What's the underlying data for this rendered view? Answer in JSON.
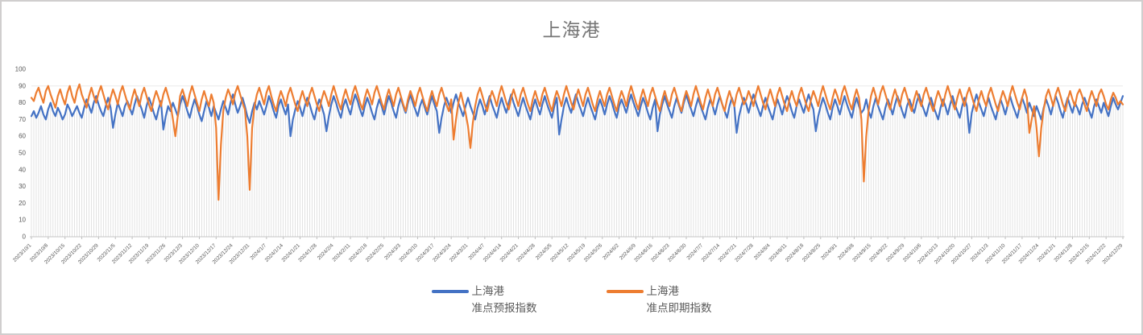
{
  "window": {
    "background": "#ffffff",
    "border_color": "#d0cece"
  },
  "chart_data": {
    "type": "line",
    "title": "上海港",
    "legend_position": "bottom",
    "grid": "vertical-drop-lines-per-point, faint horizontal line at 90",
    "ylim": [
      0,
      100
    ],
    "y_ticks": [
      0,
      10,
      20,
      30,
      40,
      50,
      60,
      70,
      80,
      90,
      100
    ],
    "tick_every": 7,
    "x_tick_labels": [
      "2023/10/1",
      "2023/10/8",
      "2023/10/15",
      "2023/10/22",
      "2023/10/29",
      "2023/11/5",
      "2023/11/12",
      "2023/11/19",
      "2023/11/26",
      "2023/12/3",
      "2023/12/10",
      "2023/12/17",
      "2023/12/24",
      "2023/12/31",
      "2024/1/7",
      "2024/1/14",
      "2024/1/21",
      "2024/1/28",
      "2024/2/4",
      "2024/2/11",
      "2024/2/18",
      "2024/2/25",
      "2024/3/3",
      "2024/3/10",
      "2024/3/17",
      "2024/3/24",
      "2024/3/31",
      "2024/4/7",
      "2024/4/14",
      "2024/4/21",
      "2024/4/28",
      "2024/5/5",
      "2024/5/12",
      "2024/5/19",
      "2024/5/26",
      "2024/6/2",
      "2024/6/9",
      "2024/6/16",
      "2024/6/23",
      "2024/6/30",
      "2024/7/7",
      "2024/7/14",
      "2024/7/21",
      "2024/7/28",
      "2024/8/4",
      "2024/8/11",
      "2024/8/18",
      "2024/8/25",
      "2024/9/1",
      "2024/9/8",
      "2024/9/15",
      "2024/9/22",
      "2024/9/29",
      "2024/10/6",
      "2024/10/13",
      "2024/10/20",
      "2024/10/27",
      "2024/11/3",
      "2024/11/10",
      "2024/11/17",
      "2024/11/24",
      "2024/12/1",
      "2024/12/8",
      "2024/12/15",
      "2024/12/22",
      "2024/12/29"
    ],
    "colors": {
      "title_text": "#767676",
      "axis_line": "#c6c6c6",
      "tick_mark": "#bfbfbf",
      "tick_text": "#595959",
      "dropline": "#dcdcdc",
      "gridline": "#e9e9e9",
      "legend_text": "#595959"
    },
    "series": [
      {
        "name": "上海港 准点预报指数",
        "legend_line1": "上海港",
        "legend_line2": "准点预报指数",
        "color": "#4472C4",
        "values": [
          72,
          75,
          71,
          74,
          78,
          73,
          70,
          76,
          80,
          75,
          72,
          77,
          74,
          70,
          73,
          79,
          76,
          72,
          75,
          78,
          74,
          71,
          77,
          82,
          78,
          74,
          80,
          84,
          79,
          75,
          72,
          78,
          83,
          77,
          65,
          73,
          80,
          76,
          72,
          78,
          81,
          77,
          73,
          79,
          84,
          80,
          76,
          71,
          78,
          83,
          79,
          74,
          70,
          76,
          81,
          64,
          72,
          78,
          75,
          80,
          76,
          72,
          79,
          84,
          80,
          75,
          71,
          77,
          82,
          78,
          73,
          69,
          75,
          81,
          77,
          72,
          78,
          74,
          70,
          76,
          81,
          77,
          73,
          80,
          85,
          79,
          74,
          78,
          83,
          78,
          72,
          68,
          75,
          80,
          76,
          81,
          77,
          73,
          78,
          84,
          80,
          75,
          71,
          78,
          82,
          77,
          73,
          79,
          60,
          70,
          76,
          81,
          77,
          72,
          78,
          83,
          79,
          74,
          70,
          77,
          82,
          78,
          73,
          63,
          72,
          79,
          84,
          80,
          75,
          71,
          78,
          82,
          77,
          73,
          80,
          85,
          81,
          76,
          72,
          78,
          83,
          79,
          74,
          70,
          77,
          82,
          78,
          73,
          79,
          84,
          80,
          75,
          71,
          78,
          83,
          78,
          74,
          80,
          85,
          80,
          76,
          72,
          78,
          82,
          77,
          73,
          79,
          84,
          79,
          75,
          62,
          71,
          78,
          83,
          79,
          74,
          80,
          85,
          80,
          76,
          72,
          78,
          83,
          78,
          74,
          70,
          77,
          82,
          78,
          73,
          79,
          84,
          79,
          75,
          71,
          78,
          83,
          78,
          74,
          80,
          85,
          80,
          76,
          72,
          78,
          83,
          78,
          74,
          70,
          77,
          82,
          77,
          73,
          79,
          84,
          79,
          75,
          71,
          78,
          83,
          61,
          70,
          78,
          83,
          78,
          74,
          80,
          85,
          80,
          76,
          72,
          78,
          83,
          78,
          74,
          70,
          77,
          82,
          78,
          73,
          79,
          84,
          80,
          75,
          71,
          78,
          82,
          78,
          74,
          80,
          85,
          80,
          76,
          72,
          78,
          83,
          79,
          74,
          70,
          77,
          82,
          63,
          73,
          79,
          84,
          79,
          75,
          71,
          78,
          83,
          78,
          74,
          80,
          85,
          80,
          76,
          72,
          78,
          83,
          78,
          74,
          70,
          77,
          82,
          78,
          73,
          79,
          84,
          79,
          75,
          71,
          78,
          83,
          78,
          62,
          72,
          78,
          83,
          79,
          74,
          80,
          85,
          80,
          76,
          72,
          78,
          83,
          78,
          74,
          70,
          77,
          82,
          78,
          73,
          79,
          84,
          80,
          75,
          71,
          78,
          82,
          78,
          74,
          80,
          85,
          80,
          76,
          63,
          72,
          78,
          83,
          79,
          74,
          70,
          77,
          82,
          78,
          73,
          79,
          84,
          79,
          75,
          71,
          78,
          83,
          78,
          74,
          76,
          82,
          75,
          71,
          78,
          83,
          78,
          74,
          70,
          77,
          82,
          78,
          73,
          79,
          84,
          80,
          75,
          71,
          78,
          82,
          78,
          74,
          80,
          85,
          80,
          76,
          72,
          78,
          83,
          78,
          74,
          70,
          77,
          82,
          78,
          73,
          79,
          84,
          79,
          75,
          71,
          78,
          83,
          78,
          62,
          74,
          80,
          85,
          80,
          76,
          72,
          78,
          83,
          78,
          74,
          70,
          77,
          82,
          78,
          73,
          79,
          84,
          79,
          75,
          71,
          78,
          83,
          79,
          74,
          80,
          76,
          72,
          78,
          74,
          70,
          77,
          82,
          78,
          73,
          79,
          84,
          80,
          75,
          71,
          78,
          83,
          78,
          74,
          80,
          77,
          73,
          79,
          83,
          79,
          75,
          71,
          78,
          82,
          78,
          74,
          80,
          76,
          72,
          78,
          83,
          79,
          76,
          80,
          84
        ]
      },
      {
        "name": "上海港 准点即期指数",
        "legend_line1": "上海港",
        "legend_line2": "准点即期指数",
        "color": "#ED7D31",
        "values": [
          83,
          81,
          86,
          89,
          84,
          80,
          87,
          90,
          85,
          81,
          77,
          84,
          88,
          83,
          79,
          86,
          90,
          84,
          80,
          87,
          91,
          85,
          81,
          77,
          84,
          89,
          84,
          80,
          86,
          90,
          85,
          80,
          76,
          83,
          88,
          84,
          79,
          86,
          90,
          85,
          80,
          76,
          83,
          88,
          83,
          78,
          85,
          89,
          84,
          79,
          75,
          82,
          87,
          83,
          78,
          85,
          89,
          84,
          79,
          70,
          60,
          72,
          84,
          88,
          83,
          78,
          85,
          90,
          85,
          80,
          75,
          82,
          87,
          82,
          78,
          85,
          80,
          65,
          22,
          55,
          75,
          83,
          88,
          84,
          79,
          86,
          90,
          85,
          80,
          76,
          60,
          28,
          65,
          78,
          85,
          89,
          84,
          79,
          86,
          90,
          84,
          79,
          75,
          82,
          87,
          83,
          78,
          85,
          89,
          84,
          79,
          75,
          82,
          87,
          82,
          78,
          85,
          89,
          84,
          79,
          75,
          82,
          87,
          83,
          78,
          85,
          90,
          85,
          80,
          76,
          83,
          88,
          83,
          79,
          86,
          90,
          85,
          80,
          76,
          83,
          88,
          84,
          79,
          86,
          90,
          85,
          80,
          76,
          83,
          88,
          83,
          78,
          85,
          89,
          84,
          79,
          75,
          82,
          87,
          83,
          78,
          85,
          89,
          84,
          79,
          75,
          82,
          87,
          82,
          78,
          85,
          89,
          84,
          79,
          75,
          82,
          58,
          70,
          80,
          86,
          80,
          74,
          66,
          53,
          68,
          78,
          85,
          89,
          84,
          79,
          75,
          82,
          87,
          83,
          78,
          85,
          90,
          85,
          80,
          76,
          83,
          88,
          83,
          78,
          85,
          89,
          84,
          79,
          75,
          82,
          87,
          82,
          78,
          85,
          89,
          84,
          79,
          75,
          82,
          87,
          83,
          78,
          85,
          90,
          85,
          80,
          76,
          83,
          88,
          83,
          78,
          85,
          89,
          84,
          79,
          75,
          82,
          87,
          82,
          78,
          85,
          89,
          84,
          79,
          75,
          82,
          87,
          83,
          78,
          85,
          90,
          85,
          80,
          76,
          83,
          88,
          83,
          78,
          85,
          89,
          84,
          79,
          75,
          82,
          87,
          82,
          78,
          85,
          89,
          84,
          79,
          75,
          82,
          87,
          83,
          78,
          85,
          90,
          85,
          80,
          76,
          83,
          88,
          83,
          78,
          85,
          89,
          84,
          79,
          75,
          82,
          87,
          82,
          78,
          85,
          89,
          84,
          79,
          82,
          87,
          83,
          78,
          85,
          90,
          85,
          80,
          76,
          83,
          88,
          83,
          78,
          85,
          89,
          84,
          79,
          75,
          82,
          87,
          82,
          78,
          85,
          89,
          84,
          79,
          75,
          82,
          87,
          83,
          78,
          85,
          90,
          85,
          80,
          76,
          83,
          88,
          84,
          79,
          86,
          90,
          85,
          80,
          76,
          83,
          88,
          83,
          70,
          33,
          60,
          75,
          84,
          89,
          84,
          79,
          86,
          90,
          85,
          80,
          76,
          83,
          88,
          83,
          78,
          85,
          89,
          84,
          79,
          75,
          82,
          87,
          82,
          78,
          85,
          89,
          84,
          79,
          75,
          82,
          87,
          83,
          78,
          85,
          90,
          85,
          80,
          76,
          83,
          88,
          83,
          78,
          85,
          89,
          84,
          79,
          75,
          82,
          87,
          82,
          78,
          85,
          89,
          84,
          79,
          75,
          82,
          87,
          83,
          78,
          85,
          90,
          85,
          80,
          76,
          83,
          88,
          83,
          62,
          70,
          78,
          65,
          48,
          65,
          76,
          84,
          88,
          83,
          78,
          85,
          89,
          84,
          79,
          75,
          82,
          87,
          82,
          78,
          85,
          88,
          84,
          79,
          75,
          82,
          87,
          83,
          78,
          85,
          88,
          84,
          79,
          76,
          82,
          86,
          83,
          79,
          81,
          79
        ]
      }
    ]
  }
}
